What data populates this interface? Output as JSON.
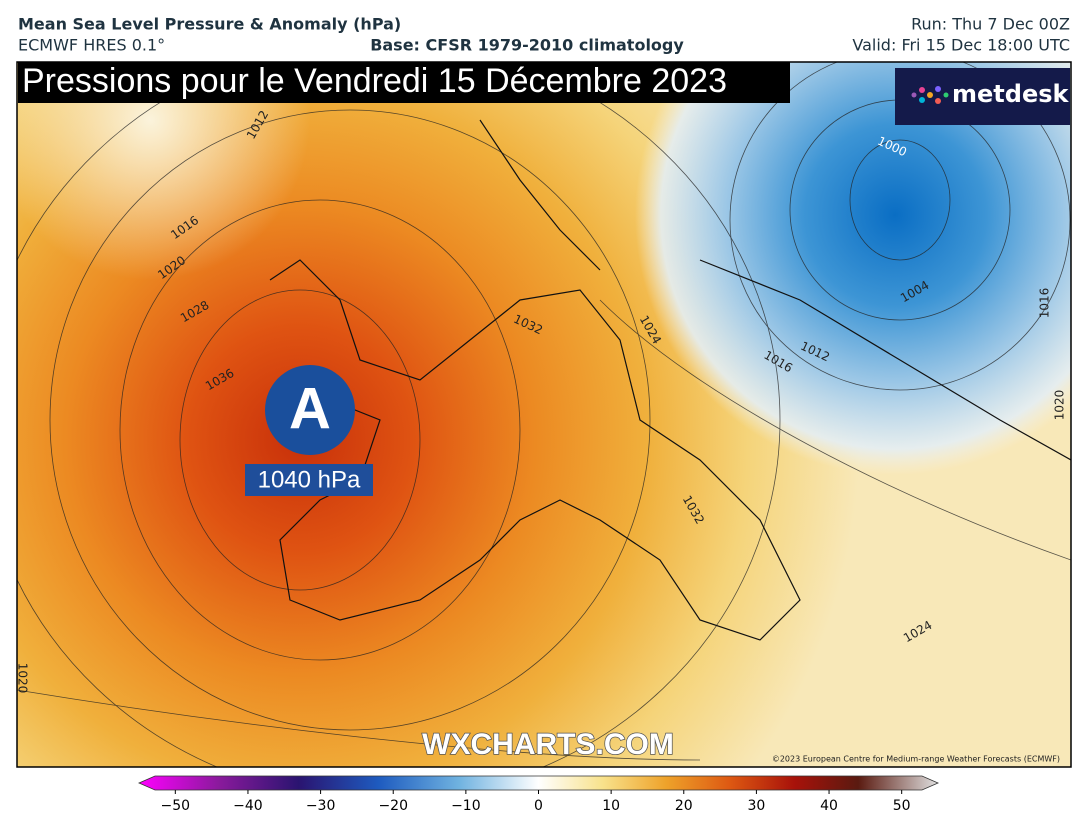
{
  "header": {
    "title": "Mean Sea Level Pressure & Anomaly (hPa)",
    "model": "ECMWF HRES 0.1°",
    "base": "Base: CFSR 1979-2010 climatology",
    "run": "Run: Thu 7 Dec 00Z",
    "valid": "Valid: Fri 15 Dec 18:00 UTC"
  },
  "map": {
    "headline": "Pressions pour le Vendredi 15 Décembre 2023",
    "brand": "metdesk",
    "high_symbol": "A",
    "high_label": "1040 hPa",
    "watermark": "WXCHARTS.COM",
    "copyright": "©2023 European Centre for Medium-range Weather Forecasts (ECMWF)",
    "isobar_labels": [
      "1012",
      "1016",
      "1020",
      "1028",
      "1036",
      "1032",
      "1024",
      "1016",
      "1012",
      "1000",
      "1004",
      "1016",
      "1020",
      "1032",
      "1024",
      "1020"
    ]
  },
  "colorbar": {
    "range": [
      -55,
      55
    ],
    "ticks": [
      {
        "value": -50,
        "label": "−50"
      },
      {
        "value": -40,
        "label": "−40"
      },
      {
        "value": -30,
        "label": "−30"
      },
      {
        "value": -20,
        "label": "−20"
      },
      {
        "value": -10,
        "label": "−10"
      },
      0,
      10,
      20,
      30,
      40,
      50
    ]
  }
}
